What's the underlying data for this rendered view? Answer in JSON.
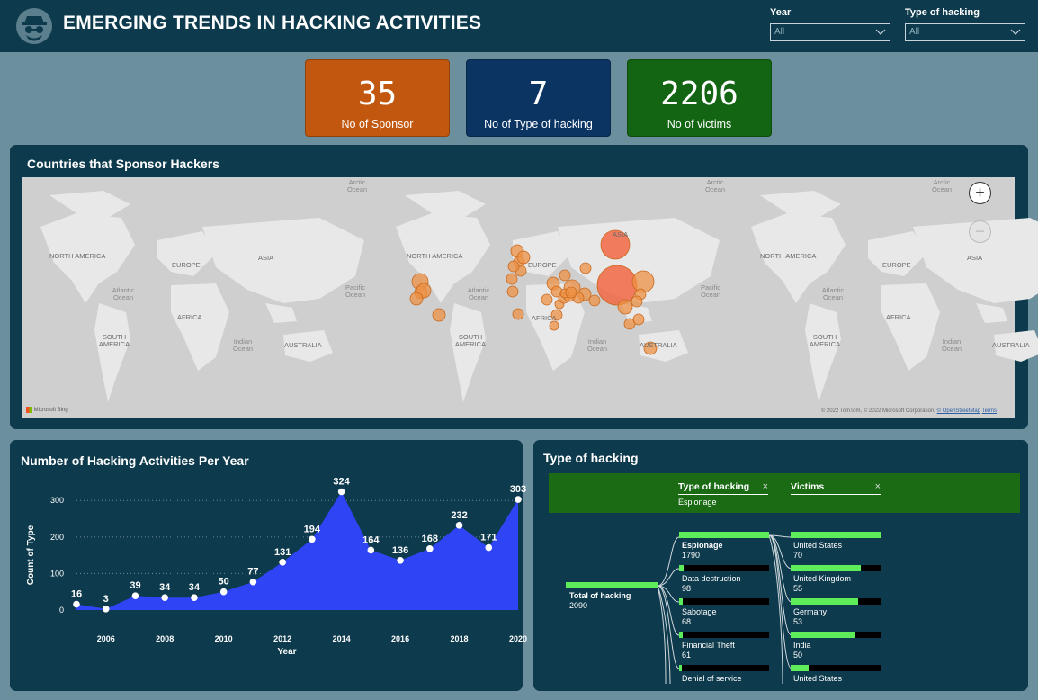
{
  "header": {
    "title": "EMERGING TRENDS IN HACKING ACTIVITIES",
    "year_filter": {
      "label": "Year",
      "value": "All"
    },
    "type_filter": {
      "label": "Type of hacking",
      "value": "All"
    }
  },
  "kpis": [
    {
      "value": "35",
      "label": "No of Sponsor",
      "color": "#c2570f"
    },
    {
      "value": "7",
      "label": "No of Type of hacking",
      "color": "#0b3463"
    },
    {
      "value": "2206",
      "label": "No of victims",
      "color": "#136413"
    }
  ],
  "map": {
    "title": "Countries that Sponsor Hackers",
    "labels": [
      "NORTH AMERICA",
      "EUROPE",
      "ASIA",
      "AFRICA",
      "SOUTH AMERICA",
      "AUSTRALIA",
      "Atlantic Ocean",
      "Pacific Ocean",
      "Indian Ocean",
      "Arctic Ocean"
    ],
    "attribution": "© 2022 TomTom, © 2022 Microsoft Corporation,",
    "attribution_link": "© OpenStreetMap",
    "terms": "Terms",
    "provider": "Microsoft Bing",
    "zoom_in": "+",
    "zoom_out": "−"
  },
  "chart_data": {
    "type": "area",
    "title": "Number of Hacking Activities Per Year",
    "xlabel": "Year",
    "ylabel": "Count of Type",
    "x": [
      2005,
      2006,
      2007,
      2008,
      2009,
      2010,
      2011,
      2012,
      2013,
      2014,
      2015,
      2016,
      2017,
      2018,
      2019,
      2020
    ],
    "values": [
      16,
      3,
      39,
      34,
      34,
      50,
      77,
      131,
      194,
      324,
      164,
      136,
      168,
      232,
      171,
      303
    ],
    "x_ticks": [
      "2006",
      "2008",
      "2010",
      "2012",
      "2014",
      "2016",
      "2018",
      "2020"
    ],
    "y_ticks": [
      0,
      100,
      200,
      300
    ],
    "ylim": [
      0,
      340
    ],
    "color": "#2f45f5",
    "grid": true
  },
  "tree": {
    "title": "Type of hacking",
    "col1": {
      "label": "Type of hacking",
      "selected": "Espionage"
    },
    "col2": {
      "label": "Victims"
    },
    "close": "×",
    "root": {
      "label": "Total of hacking",
      "value": "2090"
    },
    "types": [
      {
        "label": "Espionage",
        "value": "1790"
      },
      {
        "label": "Data destruction",
        "value": "98"
      },
      {
        "label": "Sabotage",
        "value": "68"
      },
      {
        "label": "Financial Theft",
        "value": "61"
      },
      {
        "label": "Denial of service",
        "value": ""
      }
    ],
    "victims": [
      {
        "label": "United States",
        "value": "70"
      },
      {
        "label": "United Kingdom",
        "value": "55"
      },
      {
        "label": "Germany",
        "value": "53"
      },
      {
        "label": "India",
        "value": "50"
      },
      {
        "label": "United States",
        "value": ""
      }
    ]
  }
}
